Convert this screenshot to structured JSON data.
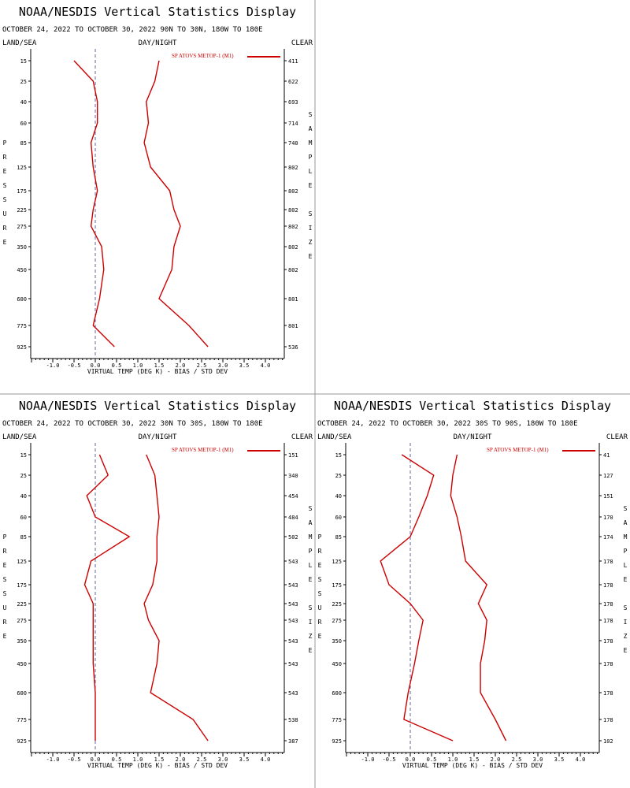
{
  "header": {
    "title": "NOAA/NESDIS Vertical Statistics Display",
    "land_sea": "LAND/SEA",
    "day_night": "DAY/NIGHT",
    "clear": "CLEAR",
    "left_axis_label": "PRESSURE",
    "right_axis_label": "SAMPLE SIZE",
    "legend": "SP ATOVS METOP-1 (M1)",
    "xlabel": "VIRTUAL TEMP (DEG K) - BIAS / STD DEV"
  },
  "colors": {
    "series": "#cc0000",
    "zero_line": "#666699",
    "axis": "#000000",
    "divider": "#999999"
  },
  "chart_data": [
    {
      "type": "line",
      "subtitle": "OCTOBER 24, 2022 TO OCTOBER 30, 2022 90N TO 30N, 180W TO 180E",
      "pressure_levels": [
        15,
        25,
        40,
        60,
        85,
        125,
        175,
        225,
        275,
        350,
        450,
        600,
        775,
        925
      ],
      "sample_size": [
        411,
        622,
        693,
        714,
        740,
        802,
        802,
        802,
        802,
        802,
        802,
        801,
        801,
        536
      ],
      "series": [
        {
          "name": "bias",
          "values": [
            -0.5,
            -0.05,
            0.05,
            0.05,
            -0.1,
            -0.05,
            0.05,
            -0.05,
            -0.1,
            0.15,
            0.2,
            0.1,
            -0.05,
            0.45
          ]
        },
        {
          "name": "std_dev",
          "values": [
            1.5,
            1.4,
            1.2,
            1.25,
            1.15,
            1.3,
            1.75,
            1.85,
            2.0,
            1.85,
            1.8,
            1.5,
            2.2,
            2.65
          ]
        }
      ],
      "xlim": [
        -1.5,
        4.5
      ],
      "x_ticks": [
        "-1.0",
        "-0.5",
        "0.0",
        "0.5",
        "1.0",
        "1.5",
        "2.0",
        "2.5",
        "3.0",
        "3.5",
        "4.0"
      ]
    },
    {
      "type": "line",
      "subtitle": "OCTOBER 24, 2022 TO OCTOBER 30, 2022 30N TO 30S, 180W TO 180E",
      "pressure_levels": [
        15,
        25,
        40,
        60,
        85,
        125,
        175,
        225,
        275,
        350,
        450,
        600,
        775,
        925
      ],
      "sample_size": [
        151,
        340,
        454,
        484,
        502,
        543,
        543,
        543,
        543,
        543,
        543,
        543,
        538,
        387
      ],
      "series": [
        {
          "name": "bias",
          "values": [
            0.1,
            0.3,
            -0.2,
            0.0,
            0.8,
            -0.1,
            -0.25,
            -0.05,
            -0.05,
            -0.05,
            -0.05,
            0.0,
            0.0,
            0.0
          ]
        },
        {
          "name": "std_dev",
          "values": [
            1.2,
            1.4,
            1.45,
            1.5,
            1.45,
            1.45,
            1.35,
            1.15,
            1.25,
            1.5,
            1.45,
            1.3,
            2.3,
            2.65
          ]
        }
      ],
      "xlim": [
        -1.5,
        4.5
      ],
      "x_ticks": [
        "-1.0",
        "-0.5",
        "0.0",
        "0.5",
        "1.0",
        "1.5",
        "2.0",
        "2.5",
        "3.0",
        "3.5",
        "4.0"
      ]
    },
    {
      "type": "line",
      "subtitle": "OCTOBER 24, 2022 TO OCTOBER 30, 2022 30S TO 90S, 180W TO 180E",
      "pressure_levels": [
        15,
        25,
        40,
        60,
        85,
        125,
        175,
        225,
        275,
        350,
        450,
        600,
        775,
        925
      ],
      "sample_size": [
        41,
        127,
        151,
        170,
        174,
        178,
        178,
        178,
        178,
        178,
        178,
        178,
        178,
        102
      ],
      "series": [
        {
          "name": "bias",
          "values": [
            -0.2,
            0.55,
            0.4,
            0.2,
            0.0,
            -0.7,
            -0.5,
            0.0,
            0.3,
            0.2,
            0.1,
            -0.05,
            -0.15,
            1.0
          ]
        },
        {
          "name": "std_dev",
          "values": [
            1.1,
            1.0,
            0.95,
            1.1,
            1.2,
            1.3,
            1.8,
            1.6,
            1.8,
            1.75,
            1.65,
            1.65,
            2.0,
            2.25
          ]
        }
      ],
      "xlim": [
        -1.5,
        4.5
      ],
      "x_ticks": [
        "-1.0",
        "-0.5",
        "0.0",
        "0.5",
        "1.0",
        "1.5",
        "2.0",
        "2.5",
        "3.0",
        "3.5",
        "4.0"
      ]
    }
  ]
}
